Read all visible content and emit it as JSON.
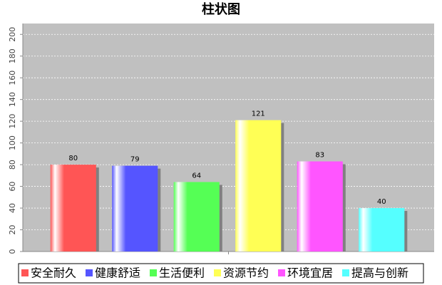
{
  "chart_data": {
    "type": "bar",
    "title": "柱状图",
    "categories": [
      null
    ],
    "series": [
      {
        "name": "安全耐久",
        "color": "#ff5555",
        "values": [
          80
        ]
      },
      {
        "name": "健康舒适",
        "color": "#5555ff",
        "values": [
          79
        ]
      },
      {
        "name": "生活便利",
        "color": "#55ff55",
        "values": [
          64
        ]
      },
      {
        "name": "资源节约",
        "color": "#ffff55",
        "values": [
          121
        ]
      },
      {
        "name": "环境宜居",
        "color": "#ff55ff",
        "values": [
          83
        ]
      },
      {
        "name": "提高与创新",
        "color": "#55ffff",
        "values": [
          40
        ]
      }
    ],
    "ylim": [
      0,
      210
    ],
    "yticks": [
      0,
      20,
      40,
      60,
      80,
      100,
      120,
      140,
      160,
      180,
      200
    ],
    "grid": true,
    "legend": "bottom"
  }
}
